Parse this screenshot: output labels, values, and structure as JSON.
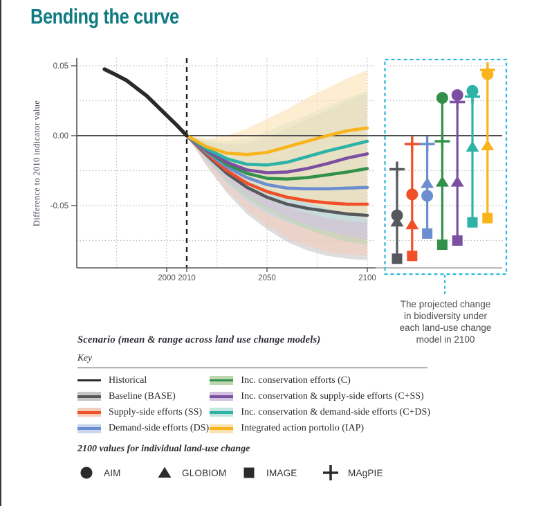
{
  "page": {
    "title": "Bending the curve",
    "title_color": "#0e7a81"
  },
  "chart_data": {
    "type": "line",
    "title": "",
    "xlabel": "",
    "ylabel": "Difference to 2010 indicator value",
    "xlim": [
      1955,
      2105
    ],
    "ylim": [
      -0.095,
      0.055
    ],
    "grid": true,
    "x_ticks": [
      {
        "year": 2000,
        "label": "2000"
      },
      {
        "year": 2010,
        "label": "2010"
      },
      {
        "year": 2050,
        "label": "2050"
      },
      {
        "year": 2100,
        "label": "2100"
      }
    ],
    "y_ticks": [
      {
        "value": 0.05,
        "label": "0.05"
      },
      {
        "value": 0,
        "label": "0.00"
      },
      {
        "value": -0.05,
        "label": "-0.05"
      }
    ],
    "grid_y_values": [
      0.05,
      0.025,
      -0.025,
      -0.05,
      -0.075
    ],
    "grid_x_years": [
      1975,
      2000,
      2025,
      2050,
      2075,
      2100
    ],
    "dashed_reference_year": 2010,
    "historical": {
      "id": "HIST",
      "label": "Historical",
      "color": "#2b2a28",
      "x": [
        1969,
        1974,
        1980,
        1990,
        2000,
        2005,
        2010
      ],
      "y": [
        0.0475,
        0.044,
        0.0395,
        0.0285,
        0.0145,
        0.0075,
        0
      ]
    },
    "scenarios": [
      {
        "id": "BASE",
        "label": "Baseline (BASE)",
        "color": "#57585c",
        "band_color": "#c6c6c6",
        "x": [
          2010,
          2020,
          2030,
          2040,
          2050,
          2060,
          2070,
          2080,
          2090,
          2100
        ],
        "mean": [
          0,
          -0.014,
          -0.027,
          -0.037,
          -0.044,
          -0.049,
          -0.052,
          -0.054,
          -0.056,
          -0.057
        ],
        "upper": [
          0,
          -0.007,
          -0.014,
          -0.019,
          -0.023,
          -0.026,
          -0.027,
          -0.027,
          -0.026,
          -0.025
        ],
        "lower": [
          0,
          -0.022,
          -0.041,
          -0.056,
          -0.067,
          -0.076,
          -0.082,
          -0.086,
          -0.088,
          -0.089
        ],
        "models_2100": {
          "AIM": -0.057,
          "GLOBIOM": -0.0615,
          "IMAGE": -0.088,
          "MAgPIE": -0.024
        }
      },
      {
        "id": "SS",
        "label": "Supply-side efforts (SS)",
        "color": "#f04f27",
        "band_color": "#f5cdbd",
        "x": [
          2010,
          2020,
          2030,
          2040,
          2050,
          2060,
          2070,
          2080,
          2090,
          2100
        ],
        "mean": [
          0,
          -0.013,
          -0.025,
          -0.034,
          -0.04,
          -0.044,
          -0.0465,
          -0.048,
          -0.049,
          -0.049
        ],
        "upper": [
          0,
          -0.006,
          -0.013,
          -0.018,
          -0.021,
          -0.023,
          -0.023,
          -0.022,
          -0.021,
          -0.02
        ],
        "lower": [
          0,
          -0.021,
          -0.039,
          -0.053,
          -0.064,
          -0.073,
          -0.079,
          -0.083,
          -0.085,
          -0.086
        ],
        "models_2100": {
          "AIM": -0.042,
          "GLOBIOM": -0.0635,
          "IMAGE": -0.086,
          "MAgPIE": -0.006
        }
      },
      {
        "id": "DS",
        "label": "Demand-side efforts (DS)",
        "color": "#6c8ed0",
        "band_color": "#ccd7ee",
        "x": [
          2010,
          2020,
          2030,
          2040,
          2050,
          2060,
          2070,
          2080,
          2090,
          2100
        ],
        "mean": [
          0,
          -0.012,
          -0.0225,
          -0.03,
          -0.035,
          -0.0375,
          -0.038,
          -0.038,
          -0.0375,
          -0.037
        ],
        "upper": [
          0,
          -0.006,
          -0.011,
          -0.015,
          -0.017,
          -0.016,
          -0.014,
          -0.012,
          -0.01,
          -0.008
        ],
        "lower": [
          0,
          -0.019,
          -0.035,
          -0.047,
          -0.056,
          -0.062,
          -0.066,
          -0.069,
          -0.07,
          -0.07
        ],
        "models_2100": {
          "AIM": -0.043,
          "GLOBIOM": -0.034,
          "IMAGE": -0.07,
          "MAgPIE": -0.006
        }
      },
      {
        "id": "C",
        "label": "Inc. conservation efforts (C)",
        "color": "#31914a",
        "band_color": "#bdd7b1",
        "x": [
          2010,
          2020,
          2030,
          2040,
          2050,
          2060,
          2070,
          2080,
          2090,
          2100
        ],
        "mean": [
          0,
          -0.011,
          -0.0205,
          -0.027,
          -0.0305,
          -0.031,
          -0.03,
          -0.028,
          -0.026,
          -0.0235
        ],
        "upper": [
          0,
          -0.004,
          -0.007,
          -0.006,
          -0.002,
          0.004,
          0.011,
          0.018,
          0.025,
          0.031
        ],
        "lower": [
          0,
          -0.018,
          -0.033,
          -0.045,
          -0.054,
          -0.061,
          -0.067,
          -0.072,
          -0.076,
          -0.078
        ],
        "models_2100": {
          "AIM": 0.027,
          "GLOBIOM": -0.033,
          "IMAGE": -0.078,
          "MAgPIE": -0.004
        }
      },
      {
        "id": "C+SS",
        "label": "Inc. conservation & supply-side efforts (C+SS)",
        "color": "#7b4fa1",
        "band_color": "#d4c1e1",
        "x": [
          2010,
          2020,
          2030,
          2040,
          2050,
          2060,
          2070,
          2080,
          2090,
          2100
        ],
        "mean": [
          0,
          -0.0105,
          -0.019,
          -0.0245,
          -0.0265,
          -0.026,
          -0.0235,
          -0.02,
          -0.016,
          -0.013
        ],
        "upper": [
          0,
          -0.004,
          -0.006,
          -0.005,
          -0.001,
          0.005,
          0.012,
          0.018,
          0.024,
          0.03
        ],
        "lower": [
          0,
          -0.017,
          -0.031,
          -0.042,
          -0.051,
          -0.058,
          -0.064,
          -0.068,
          -0.072,
          -0.075
        ],
        "models_2100": {
          "AIM": 0.029,
          "GLOBIOM": -0.033,
          "IMAGE": -0.075,
          "MAgPIE": 0.024
        }
      },
      {
        "id": "C+DS",
        "label": "Inc. conservation & demand-side efforts (C+DS)",
        "color": "#2cb3a6",
        "band_color": "#c3e7df",
        "x": [
          2010,
          2020,
          2030,
          2040,
          2050,
          2060,
          2070,
          2080,
          2090,
          2100
        ],
        "mean": [
          0,
          -0.0095,
          -0.0165,
          -0.0205,
          -0.021,
          -0.019,
          -0.015,
          -0.011,
          -0.0075,
          -0.004
        ],
        "upper": [
          0,
          -0.003,
          -0.004,
          -0.002,
          0.003,
          0.009,
          0.015,
          0.021,
          0.027,
          0.032
        ],
        "lower": [
          0,
          -0.015,
          -0.028,
          -0.038,
          -0.045,
          -0.051,
          -0.055,
          -0.059,
          -0.061,
          -0.062
        ],
        "models_2100": {
          "AIM": 0.032,
          "GLOBIOM": -0.008,
          "IMAGE": -0.062,
          "MAgPIE": 0.028
        }
      },
      {
        "id": "IAP",
        "label": "Integrated action portolio (IAP)",
        "color": "#f9b41b",
        "band_color": "#fbe3b3",
        "x": [
          2010,
          2020,
          2030,
          2040,
          2050,
          2060,
          2070,
          2080,
          2090,
          2100
        ],
        "mean": [
          0,
          -0.008,
          -0.0125,
          -0.0135,
          -0.012,
          -0.008,
          -0.004,
          0.0,
          0.0035,
          0.0055
        ],
        "upper": [
          0,
          -0.002,
          0.0,
          0.005,
          0.012,
          0.019,
          0.027,
          0.034,
          0.041,
          0.047
        ],
        "lower": [
          0,
          -0.013,
          -0.024,
          -0.032,
          -0.038,
          -0.043,
          -0.048,
          -0.052,
          -0.056,
          -0.059
        ],
        "models_2100": {
          "AIM": 0.044,
          "GLOBIOM": -0.007,
          "IMAGE": -0.059,
          "MAgPIE": 0.047
        }
      }
    ],
    "models": [
      {
        "name": "AIM",
        "marker": "circle"
      },
      {
        "name": "GLOBIOM",
        "marker": "triangle"
      },
      {
        "name": "IMAGE",
        "marker": "square"
      },
      {
        "name": "MAgPIE",
        "marker": "plus"
      }
    ]
  },
  "panel": {
    "border_color": "#2bb8da",
    "annotation_lines": [
      "The projected change",
      "in biodiversity under",
      "each land-use change",
      "model in 2100"
    ]
  },
  "legend": {
    "heading": "Scenario (mean & range across land use change models)",
    "key_label": "Key",
    "left_ids": [
      "HIST",
      "BASE",
      "SS",
      "DS"
    ],
    "right_ids": [
      "C",
      "C+SS",
      "C+DS",
      "IAP"
    ]
  },
  "models_legend": {
    "heading": "2100 values for individual land-use change",
    "marker_color": "#2b2b2b"
  }
}
